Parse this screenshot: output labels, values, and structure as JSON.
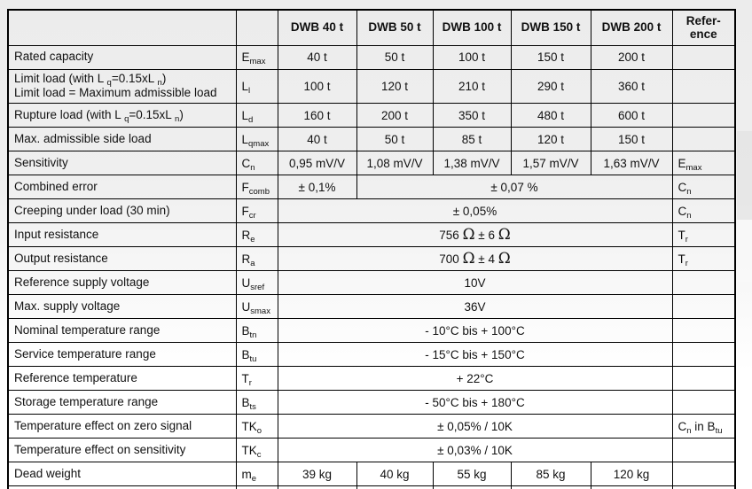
{
  "colors": {
    "page_bg_top": "#ececec",
    "page_bg_bottom": "#ffffff",
    "table_line": "#000000",
    "text": "#111111"
  },
  "table": {
    "header": {
      "empty_name": "",
      "empty_symbol": "",
      "models": [
        "DWB 40 t",
        "DWB 50 t",
        "DWB 100 t",
        "DWB 150 t",
        "DWB 200 t"
      ],
      "reference_label": "Refer-\nence"
    },
    "rows": [
      {
        "name": "Rated capacity",
        "sym": "E~max~",
        "values": [
          "40 t",
          "50 t",
          "100 t",
          "150 t",
          "200 t"
        ],
        "ref": ""
      },
      {
        "name": "Limit load (with L ~q~=0.15xL ~n~)\nLimit load = Maximum admissible load",
        "sym": "L~l~",
        "values": [
          "100 t",
          "120 t",
          "210 t",
          "290 t",
          "360 t"
        ],
        "ref": ""
      },
      {
        "name": "Rupture load (with L ~q~=0.15xL ~n~)",
        "sym": "L~d~",
        "values": [
          "160 t",
          "200 t",
          "350 t",
          "480 t",
          "600 t"
        ],
        "ref": ""
      },
      {
        "name": "Max. admissible side load",
        "sym": "L~qmax~",
        "values": [
          "40 t",
          "50 t",
          "85 t",
          "120 t",
          "150 t"
        ],
        "ref": ""
      },
      {
        "name": "Sensitivity",
        "sym": "C~n~",
        "values": [
          "0,95 mV/V",
          "1,08 mV/V",
          "1,38 mV/V",
          "1,57 mV/V",
          "1,63 mV/V"
        ],
        "ref": "E~max~"
      },
      {
        "name": "Combined error",
        "sym": "F~comb~",
        "values": [
          "± 0,1%",
          {
            "text": "± 0,07 %",
            "span": 4
          }
        ],
        "ref": "C~n~"
      },
      {
        "name": "Creeping under load (30 min)",
        "sym": "F~cr~",
        "values": [
          {
            "text": "± 0,05%",
            "span": 5
          }
        ],
        "ref": "C~n~"
      },
      {
        "name": "Input resistance",
        "sym": "R~e~",
        "values": [
          {
            "text": "756 Ω ± 6 Ω",
            "span": 5
          }
        ],
        "ref": "T~r~"
      },
      {
        "name": "Output resistance",
        "sym": "R~a~",
        "values": [
          {
            "text": "700 Ω ± 4 Ω",
            "span": 5
          }
        ],
        "ref": "T~r~"
      },
      {
        "name": "Reference supply voltage",
        "sym": "U~sref~",
        "values": [
          {
            "text": "10V",
            "span": 5
          }
        ],
        "ref": ""
      },
      {
        "name": "Max. supply voltage",
        "sym": "U~smax~",
        "values": [
          {
            "text": "36V",
            "span": 5
          }
        ],
        "ref": ""
      },
      {
        "name": "Nominal temperature range",
        "sym": "B~tn~",
        "values": [
          {
            "text": "- 10°C bis + 100°C",
            "span": 5
          }
        ],
        "ref": ""
      },
      {
        "name": "Service temperature range",
        "sym": "B~tu~",
        "values": [
          {
            "text": "- 15°C bis + 150°C",
            "span": 5
          }
        ],
        "ref": ""
      },
      {
        "name": "Reference temperature",
        "sym": "T~r~",
        "values": [
          {
            "text": "+ 22°C",
            "span": 5
          }
        ],
        "ref": ""
      },
      {
        "name": "Storage temperature range",
        "sym": "B~ts~",
        "values": [
          {
            "text": "- 50°C bis + 180°C",
            "span": 5
          }
        ],
        "ref": ""
      },
      {
        "name": "Temperature effect on zero signal",
        "sym": "TK~o~",
        "values": [
          {
            "text": "± 0,05% / 10K",
            "span": 5
          }
        ],
        "ref": "C~n~ in B~tu~"
      },
      {
        "name": "Temperature effect on sensitivity",
        "sym": "TK~c~",
        "values": [
          {
            "text": "± 0,03% / 10K",
            "span": 5
          }
        ],
        "ref": ""
      },
      {
        "name": "Dead weight",
        "sym": "m~e~",
        "values": [
          "39 kg",
          "40 kg",
          "55 kg",
          "85 kg",
          "120 kg"
        ],
        "ref": ""
      }
    ]
  }
}
